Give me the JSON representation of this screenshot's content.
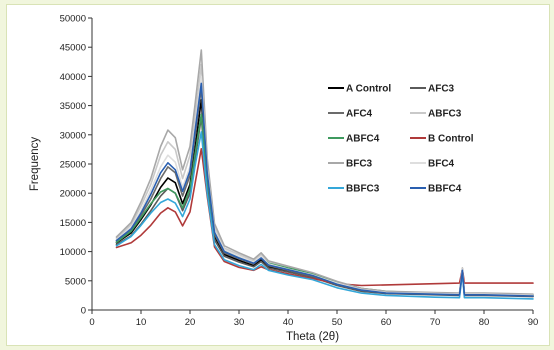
{
  "chart_data": {
    "type": "line",
    "title": "",
    "xlabel": "Theta (2θ)",
    "ylabel": "Frequency",
    "xlim": [
      0,
      90
    ],
    "ylim": [
      0,
      50000
    ],
    "x_ticks": [
      0,
      10,
      20,
      30,
      40,
      50,
      60,
      70,
      80,
      90
    ],
    "y_ticks": [
      0,
      5000,
      10000,
      15000,
      20000,
      25000,
      30000,
      35000,
      40000,
      45000,
      50000
    ],
    "grid": false,
    "legend_position": "upper-right, inside plot, 2 columns",
    "x": [
      5,
      8,
      10,
      12,
      14,
      15.5,
      17,
      18.5,
      20,
      21,
      22.3,
      23.5,
      25,
      27,
      30,
      33,
      34.5,
      36,
      40,
      45,
      50,
      55,
      60,
      70,
      75,
      75.6,
      76,
      80,
      85,
      90
    ],
    "series": [
      {
        "name": "A Control",
        "color": "#000000",
        "values": [
          11500,
          13200,
          15500,
          18000,
          21000,
          22600,
          21800,
          18200,
          21500,
          27500,
          36000,
          22000,
          12600,
          9500,
          8500,
          7600,
          8600,
          7400,
          6600,
          5700,
          4300,
          3300,
          2900,
          2700,
          2600,
          6800,
          2600,
          2600,
          2500,
          2400
        ]
      },
      {
        "name": "AFC3",
        "color": "#5a5a5a",
        "values": [
          11200,
          12700,
          14700,
          17000,
          19500,
          20800,
          20000,
          17000,
          20000,
          25500,
          33000,
          21000,
          12000,
          9200,
          8200,
          7400,
          8300,
          7200,
          6500,
          5600,
          4200,
          3200,
          2800,
          2600,
          2500,
          6700,
          2500,
          2500,
          2400,
          2300
        ]
      },
      {
        "name": "AFC4",
        "color": "#6b6b6b",
        "values": [
          11800,
          13700,
          16200,
          19000,
          22500,
          24500,
          23500,
          19500,
          23000,
          29500,
          38000,
          23000,
          13000,
          9800,
          8800,
          7900,
          8900,
          7600,
          6800,
          5800,
          4400,
          3400,
          3000,
          2800,
          2700,
          6900,
          2700,
          2700,
          2600,
          2500
        ]
      },
      {
        "name": "ABFC3",
        "color": "#c9c9c9",
        "values": [
          12300,
          14600,
          17800,
          21500,
          26500,
          28800,
          27500,
          22500,
          26500,
          33000,
          42000,
          25000,
          14200,
          10600,
          9500,
          8400,
          9500,
          8200,
          7300,
          6200,
          4700,
          3600,
          3100,
          2900,
          2800,
          7100,
          2800,
          2800,
          2700,
          2600
        ]
      },
      {
        "name": "ABFC4",
        "color": "#3f9a5f",
        "values": [
          11600,
          13500,
          15800,
          18200,
          20200,
          20800,
          20000,
          17500,
          20800,
          26500,
          33500,
          22500,
          13200,
          10200,
          9100,
          8200,
          9100,
          8000,
          7200,
          6300,
          4800,
          3700,
          3200,
          2800,
          2700,
          6900,
          2700,
          2700,
          2600,
          2500
        ]
      },
      {
        "name": "B Control",
        "color": "#b03a3a",
        "values": [
          10700,
          11500,
          12800,
          14500,
          16600,
          17500,
          16800,
          14400,
          16800,
          21500,
          27600,
          19500,
          10800,
          8300,
          7300,
          6800,
          7400,
          6900,
          6200,
          5400,
          4500,
          4200,
          4300,
          4500,
          4600,
          7000,
          4600,
          4600,
          4600,
          4600
        ]
      },
      {
        "name": "BFC3",
        "color": "#a8a8a8",
        "values": [
          12500,
          15000,
          18500,
          22500,
          28000,
          30800,
          29500,
          24000,
          28000,
          35000,
          44500,
          26000,
          14800,
          11000,
          9800,
          8700,
          9800,
          8400,
          7500,
          6400,
          4900,
          3700,
          3200,
          3000,
          2900,
          7200,
          2900,
          2900,
          2800,
          2700
        ]
      },
      {
        "name": "BFC4",
        "color": "#dedede",
        "values": [
          12000,
          14200,
          17000,
          20500,
          24500,
          26500,
          25300,
          21000,
          24500,
          31000,
          40000,
          24000,
          13600,
          10300,
          9200,
          8200,
          9200,
          7900,
          7000,
          6000,
          4600,
          3500,
          3000,
          2800,
          2700,
          7000,
          2700,
          2700,
          2600,
          2500
        ]
      },
      {
        "name": "BBFC3",
        "color": "#34a7d9",
        "values": [
          11000,
          12600,
          14500,
          16600,
          18400,
          19000,
          18300,
          16000,
          19000,
          24500,
          30500,
          20000,
          11200,
          8600,
          7600,
          6900,
          7800,
          6800,
          6000,
          5200,
          3800,
          2900,
          2500,
          2200,
          2100,
          6300,
          2100,
          2100,
          2000,
          1900
        ]
      },
      {
        "name": "BBFC4",
        "color": "#2a5fb0",
        "values": [
          11900,
          13900,
          16600,
          19800,
          23500,
          25200,
          24000,
          20300,
          23800,
          30500,
          38800,
          23500,
          13300,
          10000,
          8900,
          8000,
          8900,
          7700,
          6900,
          5900,
          4400,
          3400,
          2900,
          2700,
          2600,
          6800,
          2600,
          2600,
          2500,
          2400
        ]
      }
    ]
  }
}
